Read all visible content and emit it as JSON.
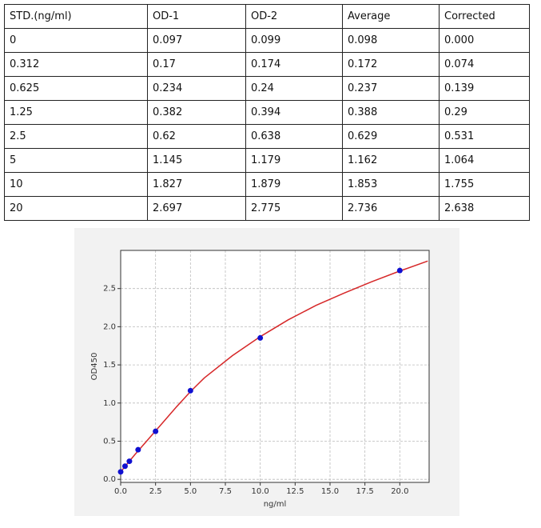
{
  "table": {
    "header": [
      "STD.(ng/ml)",
      "OD-1",
      "OD-2",
      "Average",
      "Corrected"
    ],
    "rows": [
      [
        "0",
        "0.097",
        "0.099",
        "0.098",
        "0.000"
      ],
      [
        "0.312",
        "0.17",
        "0.174",
        "0.172",
        "0.074"
      ],
      [
        "0.625",
        "0.234",
        "0.24",
        "0.237",
        "0.139"
      ],
      [
        "1.25",
        "0.382",
        "0.394",
        "0.388",
        "0.29"
      ],
      [
        "2.5",
        "0.62",
        "0.638",
        "0.629",
        "0.531"
      ],
      [
        "5",
        "1.145",
        "1.179",
        "1.162",
        "1.064"
      ],
      [
        "10",
        "1.827",
        "1.879",
        "1.853",
        "1.755"
      ],
      [
        "20",
        "2.697",
        "2.775",
        "2.736",
        "2.638"
      ]
    ]
  },
  "chart_data": {
    "type": "scatter",
    "xlabel": "ng/ml",
    "ylabel": "OD450",
    "xlim": [
      0,
      22.1
    ],
    "ylim": [
      -0.04,
      3.0
    ],
    "xticks": [
      {
        "value": 0,
        "label": "0.0"
      },
      {
        "value": 2.5,
        "label": "2.5"
      },
      {
        "value": 5,
        "label": "5.0"
      },
      {
        "value": 7.5,
        "label": "7.5"
      },
      {
        "value": 10,
        "label": "10.0"
      },
      {
        "value": 12.5,
        "label": "12.5"
      },
      {
        "value": 15,
        "label": "15.0"
      },
      {
        "value": 17.5,
        "label": "17.5"
      },
      {
        "value": 20,
        "label": "20.0"
      }
    ],
    "yticks": [
      {
        "value": 0,
        "label": "0.0"
      },
      {
        "value": 0.5,
        "label": "0.5"
      },
      {
        "value": 1,
        "label": "1.0"
      },
      {
        "value": 1.5,
        "label": "1.5"
      },
      {
        "value": 2,
        "label": "2.0"
      },
      {
        "value": 2.5,
        "label": "2.5"
      }
    ],
    "grid": true,
    "series": [
      {
        "type": "line",
        "color": "#d62728",
        "x": [
          0,
          0.5,
          1,
          2,
          3,
          4,
          5,
          6,
          8,
          10,
          12,
          14,
          16,
          18,
          20,
          22
        ],
        "values": [
          0.098,
          0.21,
          0.32,
          0.53,
          0.74,
          0.95,
          1.15,
          1.33,
          1.62,
          1.87,
          2.09,
          2.28,
          2.44,
          2.59,
          2.73,
          2.86
        ]
      },
      {
        "type": "scatter",
        "color": "#1010d0",
        "x": [
          0,
          0.312,
          0.625,
          1.25,
          2.5,
          5,
          10,
          20
        ],
        "values": [
          0.098,
          0.172,
          0.237,
          0.388,
          0.629,
          1.162,
          1.853,
          2.736
        ]
      }
    ]
  }
}
